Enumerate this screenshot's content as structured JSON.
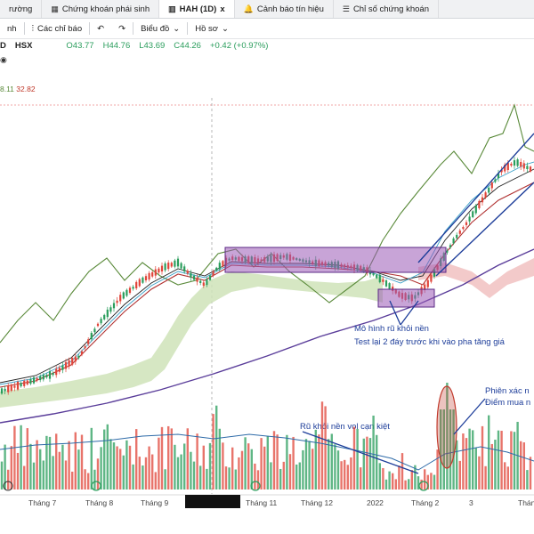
{
  "tabs": [
    {
      "label": "rường",
      "icon": ""
    },
    {
      "label": "Chứng khoán phái sinh",
      "icon": "grid-icon"
    },
    {
      "label": "HAH (1D)",
      "icon": "chart-icon",
      "close": "x",
      "active": true
    },
    {
      "label": "Cảnh báo tín hiệu",
      "icon": "bell-icon"
    },
    {
      "label": "Chỉ số chứng khoán",
      "icon": "list-icon"
    }
  ],
  "toolbar": {
    "left_label": "nh",
    "indicators_label": "Các chỉ báo",
    "undo_icon": "↶",
    "redo_icon": "↷",
    "chart_label": "Biểu đồ",
    "profile_label": "Hồ sơ"
  },
  "legend": {
    "symbol_fragment": "D",
    "exchange": "HSX",
    "open": "O43.77",
    "high": "H44.76",
    "low": "L43.69",
    "close": "C44.26",
    "change": "+0.42 (+0.97%)"
  },
  "indicator": {
    "value_a": "8.11",
    "value_b": "32.82"
  },
  "x_axis_labels": [
    "Tháng 7",
    "Tháng 8",
    "Tháng 9",
    "Tháng 11",
    "Tháng 12",
    "2022",
    "Tháng 2",
    "3",
    "Tháng"
  ],
  "annotations": {
    "pattern_line1": "Mô hình rũ khỏi nền",
    "pattern_line2": "Test lại 2 đáy trước khi vào pha tăng giá",
    "volume_note": "Rũ khỏi nền vol cạn kiệt",
    "session_line1": "Phiên xác n",
    "session_line2": "Điểm mua n"
  },
  "colors": {
    "up": "#2a9d5c",
    "down": "#e0453a",
    "box": "#9b59b6",
    "annotation": "#1e3e9a",
    "cloud_green": "#cfe3b8",
    "cloud_red": "#f2c4c4"
  }
}
